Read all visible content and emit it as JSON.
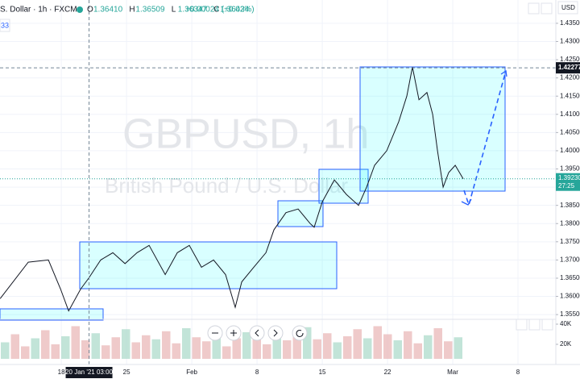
{
  "header": {
    "symbol": "S. Dollar · 1h · FXCM",
    "ohlc": [
      "O",
      "1.36410",
      "H",
      "1.36509",
      "L",
      "1.36347",
      "C",
      "1.36434"
    ],
    "change": "+0.00024 (+0.02%)",
    "badge": "33",
    "currency": "USD"
  },
  "chart_data": [
    {
      "type": "line",
      "watermark": "GBPUSD, 1h",
      "subtitle": "British Pound / U.S. Dollar",
      "color": "#131722",
      "x": [
        -4.69,
        -2.53,
        -0.99,
        -0.06,
        0.56,
        1.48,
        2.1,
        3.02,
        3.95,
        4.88,
        5.8,
        6.73,
        7.96,
        8.89,
        9.81,
        10.74,
        11.67,
        12.59,
        13.33,
        13.83,
        14.75,
        15.68,
        16.3,
        17.22,
        18.15,
        19.07,
        19.38,
        20.0,
        20.93,
        21.85,
        22.78,
        23.4,
        24.01,
        24.94,
        25.86,
        26.48,
        26.91,
        27.41,
        28.02,
        28.46,
        28.83,
        29.26,
        29.69,
        30.19,
        30.8
      ],
      "series": [
        {
          "values": [
            1.3594,
            1.3694,
            1.37,
            1.362,
            1.356,
            1.362,
            1.365,
            1.37,
            1.372,
            1.369,
            1.372,
            1.374,
            1.366,
            1.372,
            1.374,
            1.368,
            1.37,
            1.366,
            1.357,
            1.364,
            1.368,
            1.372,
            1.3783,
            1.383,
            1.384,
            1.38,
            1.379,
            1.386,
            1.392,
            1.388,
            1.385,
            1.39,
            1.396,
            1.4,
            1.408,
            1.415,
            1.423,
            1.414,
            1.416,
            1.41,
            1.4,
            1.39,
            1.394,
            1.396,
            1.3923
          ]
        }
      ],
      "xlim": [
        -4.7,
        37.9
      ],
      "ylim": [
        1.3537,
        1.4414
      ],
      "yticks": [
        {
          "value": 1.355,
          "label": "1.35500"
        },
        {
          "value": 1.36,
          "label": "1.36000"
        },
        {
          "value": 1.365,
          "label": "1.36500"
        },
        {
          "value": 1.37,
          "label": "1.37000"
        },
        {
          "value": 1.375,
          "label": "1.37500"
        },
        {
          "value": 1.38,
          "label": "1.38000"
        },
        {
          "value": 1.385,
          "label": "1.38500"
        },
        {
          "value": 1.39,
          "label": "1.39000"
        },
        {
          "value": 1.395,
          "label": "1.39500"
        },
        {
          "value": 1.4,
          "label": "1.40000"
        },
        {
          "value": 1.405,
          "label": "1.40500"
        },
        {
          "value": 1.41,
          "label": "1.41000"
        },
        {
          "value": 1.415,
          "label": "1.41500"
        },
        {
          "value": 1.42,
          "label": "1.42000"
        },
        {
          "value": 1.425,
          "label": "1.42500"
        },
        {
          "value": 1.43,
          "label": "1.43000"
        },
        {
          "value": 1.435,
          "label": "1.43500"
        }
      ],
      "xticks": [
        {
          "value": 0,
          "label": "18"
        },
        {
          "value": 5,
          "label": "25"
        },
        {
          "value": 10,
          "label": "Feb"
        },
        {
          "value": 15,
          "label": "8"
        },
        {
          "value": 20,
          "label": "15"
        },
        {
          "value": 25,
          "label": "22"
        },
        {
          "value": 30,
          "label": "Mar"
        },
        {
          "value": 35,
          "label": "8"
        }
      ],
      "last_price": {
        "value": 1.3923,
        "label": "1.39230"
      },
      "countdown": "27:25",
      "crosshair": {
        "y": {
          "value": 1.42277,
          "label": "1.42277"
        },
        "x": {
          "value": 2.125,
          "label": "20 Jan '21 03:00"
        }
      },
      "grid": true
    },
    {
      "type": "bar",
      "color": "#e8b4b4",
      "ylim": [
        5600,
        44800
      ],
      "yticks": [
        {
          "value": 20000,
          "label": "20K"
        },
        {
          "value": 40000,
          "label": "40K"
        }
      ],
      "values": [
        22000,
        30000,
        18000,
        26000,
        34000,
        20000,
        28000,
        38000,
        24000,
        31000,
        19000,
        27000,
        35000,
        22000,
        29000,
        25000,
        33000,
        21000,
        36000,
        27000,
        23000,
        30000,
        18000,
        26000,
        32000,
        28000,
        20000,
        34000,
        24000,
        29000,
        37000,
        25000,
        31000,
        22000,
        28000,
        35000,
        26000,
        38000,
        30000,
        24000,
        33000,
        21000,
        29000,
        36000,
        23000,
        27000
      ]
    }
  ]
}
